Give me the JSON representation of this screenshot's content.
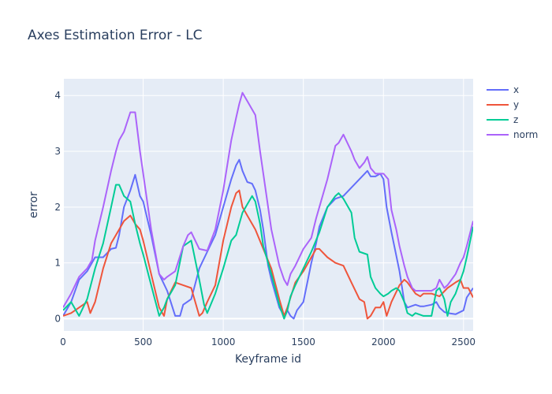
{
  "chart_data": {
    "type": "line",
    "title": "Axes Estimation Error - LC",
    "xlabel": "Keyframe id",
    "ylabel": "error",
    "xlim": [
      0,
      2560
    ],
    "ylim": [
      -0.22,
      4.3
    ],
    "xticks": [
      0,
      500,
      1000,
      1500,
      2000,
      2500
    ],
    "yticks": [
      0,
      1,
      2,
      3,
      4
    ],
    "grid": true,
    "legend_position": "top-right",
    "series": [
      {
        "name": "x",
        "color": "#636efa",
        "x": [
          0,
          50,
          100,
          150,
          200,
          250,
          300,
          330,
          350,
          380,
          420,
          450,
          480,
          500,
          550,
          600,
          650,
          700,
          730,
          750,
          800,
          850,
          900,
          950,
          1000,
          1050,
          1080,
          1100,
          1120,
          1150,
          1180,
          1200,
          1230,
          1250,
          1280,
          1300,
          1350,
          1380,
          1400,
          1420,
          1440,
          1460,
          1500,
          1550,
          1580,
          1600,
          1650,
          1700,
          1750,
          1800,
          1850,
          1900,
          1920,
          1950,
          1980,
          2000,
          2020,
          2050,
          2100,
          2130,
          2150,
          2200,
          2230,
          2250,
          2300,
          2330,
          2350,
          2380,
          2400,
          2450,
          2500,
          2520,
          2560
        ],
        "y": [
          0.05,
          0.3,
          0.7,
          0.85,
          1.1,
          1.1,
          1.25,
          1.27,
          1.5,
          2.0,
          2.3,
          2.58,
          2.2,
          2.1,
          1.5,
          0.8,
          0.5,
          0.05,
          0.05,
          0.25,
          0.35,
          0.9,
          1.2,
          1.5,
          2.0,
          2.5,
          2.75,
          2.85,
          2.65,
          2.45,
          2.42,
          2.3,
          1.95,
          1.6,
          0.95,
          0.7,
          0.2,
          0.05,
          0.15,
          0.05,
          0.0,
          0.15,
          0.3,
          1.0,
          1.35,
          1.65,
          2.0,
          2.15,
          2.2,
          2.35,
          2.5,
          2.65,
          2.55,
          2.55,
          2.6,
          2.5,
          2.0,
          1.55,
          0.85,
          0.3,
          0.2,
          0.25,
          0.22,
          0.22,
          0.25,
          0.3,
          0.2,
          0.12,
          0.1,
          0.08,
          0.15,
          0.38,
          0.55
        ]
      },
      {
        "name": "y",
        "color": "#ef553b",
        "x": [
          0,
          50,
          100,
          150,
          170,
          200,
          250,
          300,
          350,
          380,
          420,
          450,
          480,
          500,
          550,
          600,
          630,
          650,
          700,
          750,
          800,
          850,
          870,
          900,
          950,
          1000,
          1050,
          1080,
          1100,
          1120,
          1150,
          1200,
          1250,
          1300,
          1350,
          1380,
          1400,
          1450,
          1500,
          1550,
          1580,
          1600,
          1650,
          1700,
          1750,
          1800,
          1850,
          1880,
          1900,
          1920,
          1950,
          1980,
          2000,
          2020,
          2050,
          2100,
          2130,
          2150,
          2200,
          2230,
          2250,
          2300,
          2350,
          2400,
          2450,
          2480,
          2500,
          2530,
          2560
        ],
        "y": [
          0.05,
          0.1,
          0.2,
          0.3,
          0.1,
          0.3,
          0.9,
          1.35,
          1.6,
          1.75,
          1.85,
          1.7,
          1.6,
          1.4,
          0.8,
          0.2,
          0.05,
          0.35,
          0.65,
          0.6,
          0.55,
          0.05,
          0.1,
          0.3,
          0.6,
          1.4,
          2.0,
          2.25,
          2.3,
          2.0,
          1.85,
          1.6,
          1.25,
          0.9,
          0.35,
          0.05,
          0.2,
          0.65,
          0.85,
          1.1,
          1.25,
          1.25,
          1.1,
          1.0,
          0.95,
          0.65,
          0.35,
          0.3,
          0.0,
          0.05,
          0.2,
          0.2,
          0.3,
          0.05,
          0.3,
          0.6,
          0.7,
          0.65,
          0.45,
          0.4,
          0.45,
          0.45,
          0.4,
          0.55,
          0.65,
          0.7,
          0.55,
          0.55,
          0.38
        ]
      },
      {
        "name": "z",
        "color": "#00cc96",
        "x": [
          0,
          50,
          100,
          150,
          200,
          250,
          300,
          330,
          350,
          380,
          420,
          450,
          480,
          500,
          550,
          600,
          630,
          650,
          700,
          750,
          800,
          850,
          880,
          900,
          950,
          1000,
          1050,
          1080,
          1100,
          1120,
          1150,
          1180,
          1200,
          1230,
          1250,
          1300,
          1350,
          1380,
          1400,
          1420,
          1450,
          1500,
          1550,
          1600,
          1650,
          1700,
          1720,
          1750,
          1800,
          1820,
          1850,
          1900,
          1920,
          1950,
          1980,
          2000,
          2030,
          2050,
          2080,
          2100,
          2130,
          2150,
          2180,
          2200,
          2250,
          2300,
          2330,
          2350,
          2380,
          2400,
          2420,
          2450,
          2500,
          2520,
          2560
        ],
        "y": [
          0.15,
          0.3,
          0.05,
          0.35,
          0.9,
          1.35,
          2.0,
          2.4,
          2.4,
          2.2,
          2.1,
          1.7,
          1.35,
          1.15,
          0.6,
          0.05,
          0.2,
          0.35,
          0.6,
          1.3,
          1.4,
          0.7,
          0.25,
          0.1,
          0.45,
          0.9,
          1.4,
          1.5,
          1.7,
          1.9,
          2.05,
          2.2,
          2.1,
          1.7,
          1.3,
          0.8,
          0.25,
          0.0,
          0.15,
          0.4,
          0.6,
          0.9,
          1.2,
          1.55,
          2.0,
          2.2,
          2.25,
          2.15,
          1.9,
          1.45,
          1.2,
          1.15,
          0.75,
          0.55,
          0.45,
          0.4,
          0.45,
          0.5,
          0.55,
          0.5,
          0.3,
          0.1,
          0.05,
          0.1,
          0.05,
          0.05,
          0.5,
          0.55,
          0.35,
          0.05,
          0.3,
          0.45,
          0.85,
          1.1,
          1.65
        ]
      },
      {
        "name": "norm",
        "color": "#ab63fa",
        "x": [
          0,
          50,
          100,
          150,
          180,
          200,
          250,
          300,
          330,
          350,
          380,
          420,
          450,
          480,
          500,
          550,
          600,
          630,
          650,
          700,
          750,
          780,
          800,
          850,
          900,
          950,
          1000,
          1050,
          1080,
          1100,
          1120,
          1150,
          1180,
          1200,
          1230,
          1250,
          1300,
          1350,
          1380,
          1400,
          1420,
          1450,
          1500,
          1550,
          1580,
          1600,
          1650,
          1700,
          1720,
          1750,
          1800,
          1820,
          1850,
          1880,
          1900,
          1920,
          1950,
          1980,
          2000,
          2030,
          2050,
          2080,
          2100,
          2130,
          2150,
          2180,
          2200,
          2250,
          2300,
          2330,
          2350,
          2380,
          2400,
          2450,
          2480,
          2500,
          2520,
          2560
        ],
        "y": [
          0.2,
          0.45,
          0.75,
          0.9,
          1.05,
          1.4,
          2.0,
          2.65,
          3.0,
          3.2,
          3.35,
          3.7,
          3.7,
          3.0,
          2.6,
          1.6,
          0.8,
          0.7,
          0.75,
          0.85,
          1.3,
          1.5,
          1.55,
          1.25,
          1.22,
          1.6,
          2.3,
          3.2,
          3.6,
          3.85,
          4.05,
          3.9,
          3.75,
          3.65,
          3.0,
          2.6,
          1.6,
          0.95,
          0.7,
          0.6,
          0.8,
          0.95,
          1.25,
          1.45,
          1.8,
          2.0,
          2.5,
          3.1,
          3.15,
          3.3,
          3.0,
          2.85,
          2.7,
          2.8,
          2.9,
          2.7,
          2.6,
          2.6,
          2.6,
          2.5,
          1.95,
          1.6,
          1.3,
          0.95,
          0.75,
          0.55,
          0.5,
          0.5,
          0.5,
          0.55,
          0.7,
          0.55,
          0.6,
          0.8,
          1.0,
          1.1,
          1.3,
          1.75
        ]
      }
    ]
  }
}
